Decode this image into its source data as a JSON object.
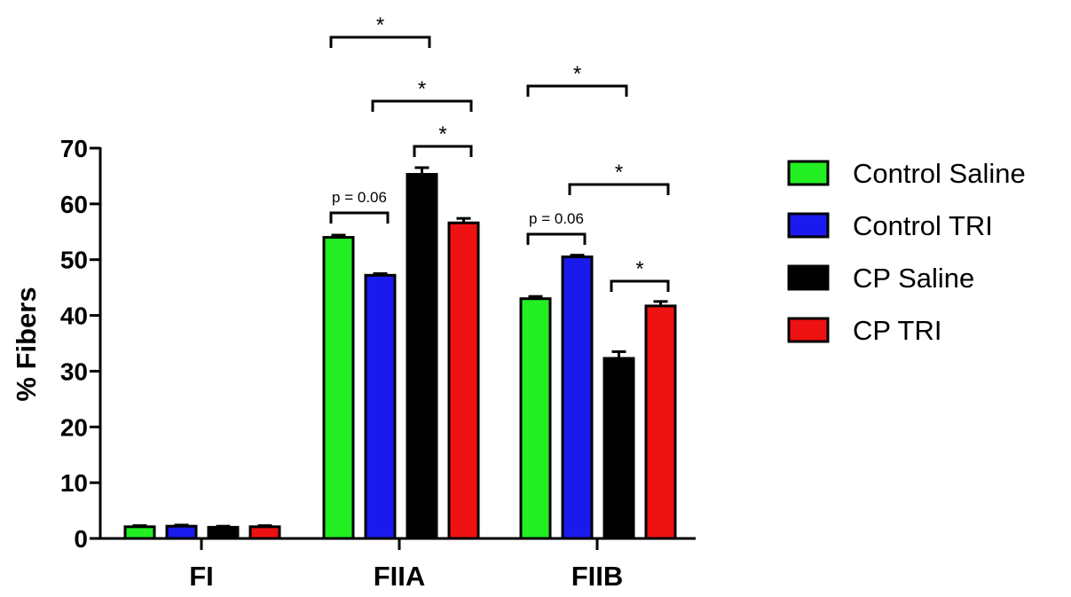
{
  "chart_data": {
    "type": "bar",
    "title": "",
    "xlabel": "",
    "ylabel": "% Fibers",
    "ylim": [
      0,
      70
    ],
    "yticks": [
      0,
      10,
      20,
      30,
      40,
      50,
      60,
      70
    ],
    "categories": [
      "FI",
      "FIIA",
      "FIIB"
    ],
    "series": [
      {
        "name": "Control Saline",
        "color": "#22ee22",
        "values": [
          2.1,
          54.0,
          43.0
        ],
        "errors": [
          0.2,
          0.4,
          0.4
        ]
      },
      {
        "name": "Control TRI",
        "color": "#1a1aee",
        "values": [
          2.2,
          47.2,
          50.5
        ],
        "errors": [
          0.2,
          0.3,
          0.3
        ]
      },
      {
        "name": "CP Saline",
        "color": "#000000",
        "values": [
          2.0,
          65.3,
          32.3
        ],
        "errors": [
          0.2,
          1.2,
          1.2
        ]
      },
      {
        "name": "CP TRI",
        "color": "#ee1111",
        "values": [
          2.1,
          56.6,
          41.7
        ],
        "errors": [
          0.2,
          0.8,
          0.8
        ]
      }
    ],
    "grid": false,
    "legend": {
      "placement": "right"
    },
    "annotations": [
      {
        "category": "FIIA",
        "from_series": 0,
        "to_series": 2,
        "label": "*"
      },
      {
        "category": "FIIA",
        "from_series": 1,
        "to_series": 3,
        "label": "*"
      },
      {
        "category": "FIIA",
        "from_series": 2,
        "to_series": 3,
        "label": "*"
      },
      {
        "category": "FIIA",
        "from_series": 0,
        "to_series": 1,
        "label": "p = 0.06"
      },
      {
        "category": "FIIB",
        "from_series": 0,
        "to_series": 2,
        "label": "*"
      },
      {
        "category": "FIIB",
        "from_series": 1,
        "to_series": 3,
        "label": "*"
      },
      {
        "category": "FIIB",
        "from_series": 2,
        "to_series": 3,
        "label": "*"
      },
      {
        "category": "FIIB",
        "from_series": 0,
        "to_series": 1,
        "label": "p = 0.06"
      }
    ]
  }
}
